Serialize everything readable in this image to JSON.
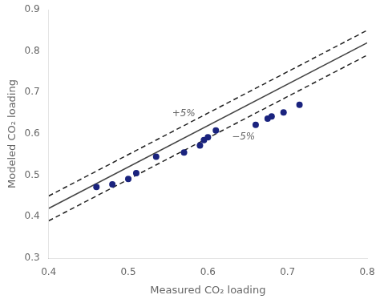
{
  "chart_data": {
    "type": "scatter",
    "xlabel": "Measured CO₂ loading",
    "ylabel": "Modeled CO₂ loading",
    "series": [
      {
        "type": "scatter",
        "color": "#1a237e",
        "marker": "circle",
        "x": [
          0.46,
          0.48,
          0.5,
          0.51,
          0.535,
          0.57,
          0.59,
          0.595,
          0.6,
          0.61,
          0.66,
          0.675,
          0.68,
          0.695,
          0.715
        ],
        "values": [
          0.472,
          0.478,
          0.491,
          0.505,
          0.545,
          0.555,
          0.572,
          0.585,
          0.592,
          0.608,
          0.622,
          0.637,
          0.642,
          0.652,
          0.67
        ]
      },
      {
        "type": "line",
        "color": "#444444",
        "line_style": "solid",
        "x": [
          0.4,
          0.8
        ],
        "values": [
          0.42,
          0.82
        ]
      },
      {
        "type": "line",
        "color": "#222222",
        "line_style": "dashed",
        "x": [
          0.4,
          0.8
        ],
        "values": [
          0.45,
          0.85
        ]
      },
      {
        "type": "line",
        "color": "#222222",
        "line_style": "dashed",
        "x": [
          0.4,
          0.8
        ],
        "values": [
          0.39,
          0.79
        ]
      }
    ],
    "annotations": [
      {
        "text": "+5%",
        "x": 0.555,
        "y": 0.648
      },
      {
        "text": "−5%",
        "x": 0.63,
        "y": 0.592
      }
    ],
    "xlim": [
      0.4,
      0.8
    ],
    "ylim": [
      0.3,
      0.9
    ],
    "xticks": [
      0.4,
      0.5,
      0.6,
      0.7,
      0.8
    ],
    "yticks": [
      0.3,
      0.4,
      0.5,
      0.6,
      0.7,
      0.8,
      0.9
    ],
    "grid": false
  }
}
